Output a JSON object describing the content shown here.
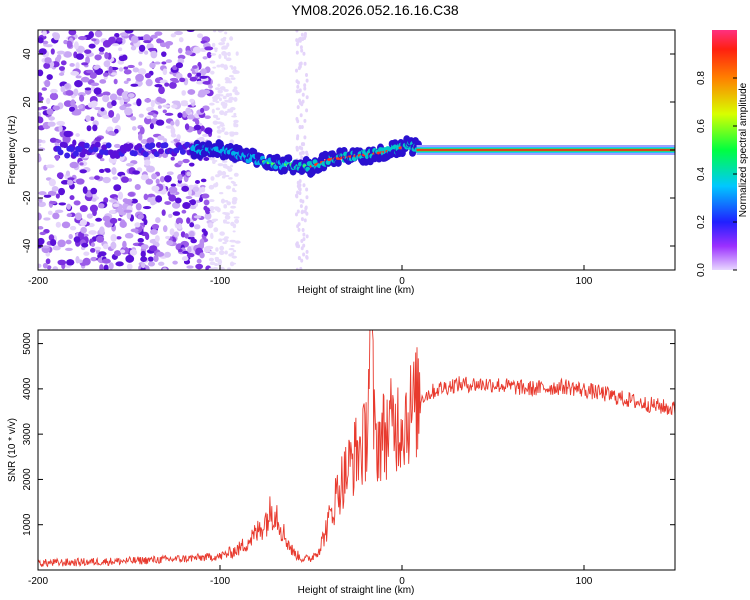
{
  "title": "YM08.2026.052.16.16.C38",
  "chart_data": [
    {
      "type": "heatmap",
      "xlabel": "Height of straight line (km)",
      "ylabel": "Frequency (Hz)",
      "xlim": [
        -200,
        150
      ],
      "ylim": [
        -50,
        50
      ],
      "xticks": [
        -200,
        -100,
        0,
        100
      ],
      "yticks": [
        -40,
        -20,
        0,
        20,
        40
      ],
      "colorbar": {
        "label": "Normalized spectral amplitude",
        "range": [
          0,
          1
        ],
        "ticks": [
          "0.0",
          "0.2",
          "0.4",
          "0.6",
          "0.8"
        ]
      },
      "ridge": {
        "x": [
          -115,
          -100,
          -90,
          -80,
          -70,
          -60,
          -50,
          -40,
          -30,
          -20,
          -10,
          0,
          5,
          10,
          150
        ],
        "y": [
          0,
          0,
          -2,
          -4,
          -6,
          -6,
          -7,
          -4,
          -3,
          -2,
          -1,
          1,
          2,
          0,
          0
        ]
      }
    },
    {
      "type": "line",
      "xlabel": "Height of straight line (km)",
      "ylabel": "SNR (10 * v/v)",
      "xlim": [
        -200,
        150
      ],
      "ylim": [
        0,
        5300
      ],
      "xticks": [
        -200,
        -100,
        0,
        100
      ],
      "yticks": [
        1000,
        2000,
        3000,
        4000,
        5000
      ],
      "series": [
        {
          "name": "SNR",
          "color": "#e83a2e",
          "x": [
            -200,
            -150,
            -120,
            -100,
            -90,
            -80,
            -75,
            -70,
            -65,
            -60,
            -55,
            -50,
            -45,
            -40,
            -35,
            -30,
            -25,
            -20,
            -17,
            -15,
            -10,
            -5,
            0,
            5,
            10,
            20,
            30,
            50,
            70,
            90,
            110,
            130,
            150
          ],
          "y": [
            150,
            200,
            250,
            300,
            450,
            800,
            1100,
            1400,
            800,
            400,
            250,
            250,
            500,
            1100,
            1800,
            2200,
            2600,
            2800,
            5300,
            2800,
            3000,
            3200,
            3300,
            3500,
            3800,
            4000,
            4100,
            4100,
            4000,
            4050,
            3900,
            3700,
            3550
          ]
        }
      ]
    }
  ]
}
